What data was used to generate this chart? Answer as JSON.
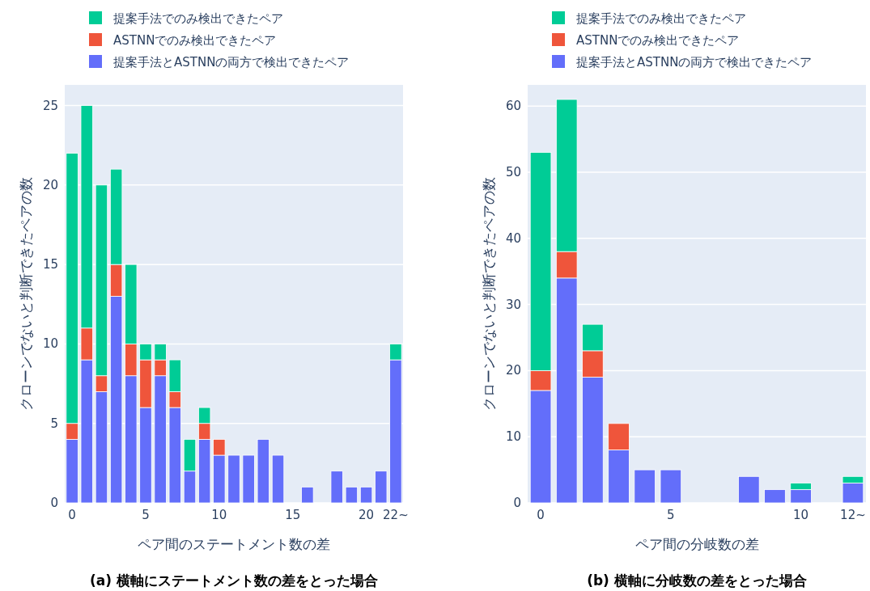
{
  "chart_data": [
    {
      "type": "bar",
      "stacked": true,
      "xlabel": "ペア間のステートメント数の差",
      "ylabel": "クローンでないと判断できたペアの数",
      "legend": "top",
      "grid": "y",
      "annotations": [
        "(a) 横軸にステートメント数の差をとった場合"
      ],
      "x": [
        0,
        1,
        2,
        3,
        4,
        5,
        6,
        7,
        8,
        9,
        10,
        11,
        12,
        13,
        14,
        15,
        16,
        17,
        18,
        19,
        20,
        21,
        22
      ],
      "xlim": [
        -0.5,
        22.5
      ],
      "ylim": [
        0,
        26.3
      ],
      "xticks": [
        0,
        5,
        10,
        15,
        20,
        {
          "value": 22,
          "label": "22~"
        }
      ],
      "yticks": [
        0,
        5,
        10,
        15,
        20,
        25
      ],
      "series": [
        {
          "name": "提案手法とASTNNの両方で検出できたペア",
          "color": "#636efa",
          "values": [
            4,
            9,
            7,
            13,
            8,
            6,
            8,
            6,
            2,
            4,
            3,
            3,
            3,
            4,
            3,
            0,
            1,
            0,
            2,
            1,
            1,
            2,
            9
          ]
        },
        {
          "name": "ASTNNでのみ検出できたペア",
          "color": "#ef553b",
          "values": [
            1,
            2,
            1,
            2,
            2,
            3,
            1,
            1,
            0,
            1,
            1,
            0,
            0,
            0,
            0,
            0,
            0,
            0,
            0,
            0,
            0,
            0,
            0
          ]
        },
        {
          "name": "提案手法でのみ検出できたペア",
          "color": "#00cc96",
          "values": [
            17,
            14,
            12,
            6,
            5,
            1,
            1,
            2,
            2,
            1,
            0,
            0,
            0,
            0,
            0,
            0,
            0,
            0,
            0,
            0,
            0,
            0,
            1
          ]
        }
      ]
    },
    {
      "type": "bar",
      "stacked": true,
      "xlabel": "ペア間の分岐数の差",
      "ylabel": "クローンでないと判断できたペアの数",
      "legend": "top",
      "grid": "y",
      "annotations": [
        "(b) 横軸に分岐数の差をとった場合"
      ],
      "x": [
        0,
        1,
        2,
        3,
        4,
        5,
        6,
        7,
        8,
        9,
        10,
        11,
        12
      ],
      "xlim": [
        -0.5,
        12.5
      ],
      "ylim": [
        0,
        63.2
      ],
      "xticks": [
        0,
        5,
        10,
        {
          "value": 12,
          "label": "12~"
        }
      ],
      "yticks": [
        0,
        10,
        20,
        30,
        40,
        50,
        60
      ],
      "series": [
        {
          "name": "提案手法とASTNNの両方で検出できたペア",
          "color": "#636efa",
          "values": [
            17,
            34,
            19,
            8,
            5,
            5,
            0,
            0,
            4,
            2,
            2,
            0,
            3
          ]
        },
        {
          "name": "ASTNNでのみ検出できたペア",
          "color": "#ef553b",
          "values": [
            3,
            4,
            4,
            4,
            0,
            0,
            0,
            0,
            0,
            0,
            0,
            0,
            0
          ]
        },
        {
          "name": "提案手法でのみ検出できたペア",
          "color": "#00cc96",
          "values": [
            33,
            23,
            4,
            0,
            0,
            0,
            0,
            0,
            0,
            0,
            1,
            0,
            1
          ]
        }
      ]
    }
  ]
}
